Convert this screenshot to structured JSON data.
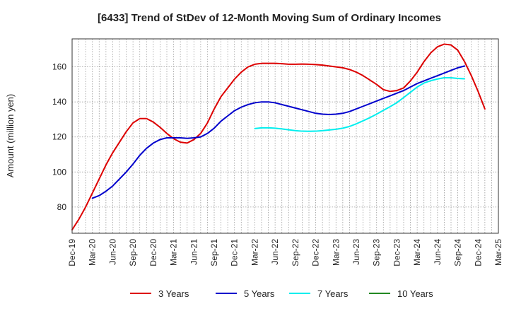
{
  "chart_data": {
    "type": "line",
    "title": "[6433]  Trend of StDev of 12-Month Moving Sum of Ordinary Incomes",
    "ylabel": "Amount (million yen)",
    "xlabel": "",
    "x_tick_labels": [
      "Dec-19",
      "Mar-20",
      "Jun-20",
      "Sep-20",
      "Dec-20",
      "Mar-21",
      "Jun-21",
      "Sep-21",
      "Dec-21",
      "Mar-22",
      "Jun-22",
      "Sep-22",
      "Dec-22",
      "Mar-23",
      "Jun-23",
      "Sep-23",
      "Dec-23",
      "Mar-24",
      "Jun-24",
      "Sep-24",
      "Dec-24",
      "Mar-25"
    ],
    "y_ticks": [
      80,
      100,
      120,
      140,
      160
    ],
    "ylim": [
      65,
      176
    ],
    "grid": true,
    "legend_position": "bottom",
    "series": [
      {
        "name": "3 Years",
        "color": "#dd0000",
        "start_index": 0,
        "values": [
          67,
          73,
          80,
          88,
          96,
          104,
          111,
          117,
          123,
          128,
          130.5,
          130.5,
          128.5,
          125.5,
          122,
          119,
          117,
          116.5,
          118.5,
          122,
          128,
          136,
          143,
          148,
          153,
          157,
          160,
          161.5,
          162,
          162,
          162,
          161.8,
          161.5,
          161.5,
          161.6,
          161.5,
          161.3,
          161,
          160.5,
          160,
          159.5,
          158.5,
          157,
          155,
          152.5,
          150,
          147,
          146,
          146.5,
          148,
          152,
          157,
          163,
          168,
          171.5,
          173,
          172.5,
          169.5,
          163,
          155,
          146,
          136
        ]
      },
      {
        "name": "5 Years",
        "color": "#0000cc",
        "start_index": 3,
        "values": [
          85,
          86.5,
          89,
          92,
          96,
          100,
          104.5,
          109.5,
          113.5,
          116.5,
          118.5,
          119.5,
          119.5,
          119.5,
          119.2,
          119.5,
          120,
          122,
          125,
          129,
          132,
          135,
          137,
          138.5,
          139.5,
          140,
          140,
          139.5,
          138.5,
          137.5,
          136.5,
          135.5,
          134.5,
          133.5,
          133,
          132.8,
          133,
          133.5,
          134.5,
          136,
          137.5,
          139,
          140.5,
          142,
          143.5,
          145,
          146.5,
          148.5,
          150.5,
          152,
          153.5,
          155,
          156.5,
          158,
          159.5,
          160.5
        ]
      },
      {
        "name": "7 Years",
        "color": "#00eeee",
        "start_index": 27,
        "values": [
          124.8,
          125.2,
          125.2,
          125,
          124.6,
          124.1,
          123.6,
          123.3,
          123.2,
          123.3,
          123.6,
          124,
          124.4,
          125,
          126,
          127.5,
          129.2,
          131,
          133,
          135.2,
          137.3,
          139.6,
          142.5,
          145.5,
          148.5,
          150.8,
          152.1,
          153.1,
          153.8,
          153.8,
          153.4,
          153.2
        ]
      },
      {
        "name": "10 Years",
        "color": "#228822",
        "start_index": 0,
        "values": []
      }
    ]
  }
}
